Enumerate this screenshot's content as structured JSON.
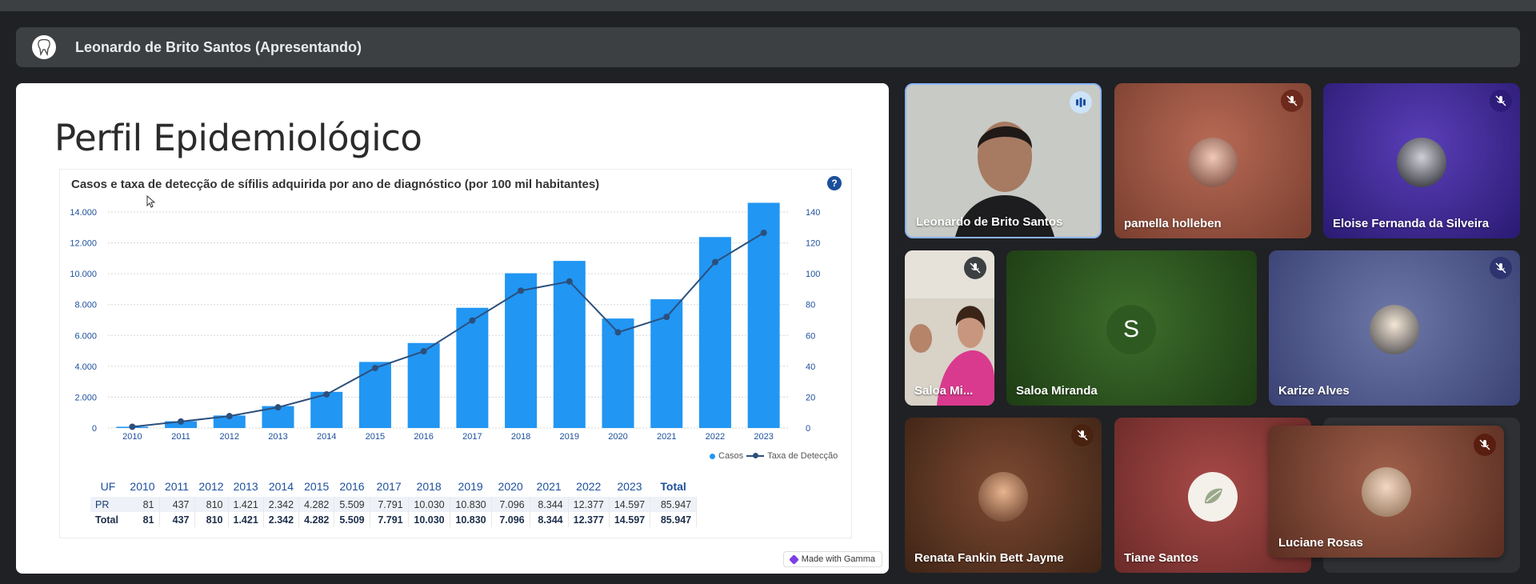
{
  "presenter": {
    "name": "Leonardo de Brito Santos (Apresentando)"
  },
  "slide": {
    "title": "Perfil Epidemiológico",
    "chart_title": "Casos e taxa de detecção de sífilis adquirida por ano de diagnóstico (por 100 mil habitantes)",
    "help_label": "?",
    "legend_cases": "Casos",
    "legend_rate": "Taxa de Detecção",
    "gamma_badge": "Made with Gamma",
    "table": {
      "headers": [
        "UF",
        "2010",
        "2011",
        "2012",
        "2013",
        "2014",
        "2015",
        "2016",
        "2017",
        "2018",
        "2019",
        "2020",
        "2021",
        "2022",
        "2023",
        "Total"
      ],
      "rows": [
        [
          "PR",
          "81",
          "437",
          "810",
          "1.421",
          "2.342",
          "4.282",
          "5.509",
          "7.791",
          "10.030",
          "10.830",
          "7.096",
          "8.344",
          "12.377",
          "14.597",
          "85.947"
        ],
        [
          "Total",
          "81",
          "437",
          "810",
          "1.421",
          "2.342",
          "4.282",
          "5.509",
          "7.791",
          "10.030",
          "10.830",
          "7.096",
          "8.344",
          "12.377",
          "14.597",
          "85.947"
        ]
      ]
    }
  },
  "chart_data": {
    "type": "bar",
    "title": "Casos e taxa de detecção de sífilis adquirida por ano de diagnóstico (por 100 mil habitantes)",
    "categories": [
      "2010",
      "2011",
      "2012",
      "2013",
      "2014",
      "2015",
      "2016",
      "2017",
      "2018",
      "2019",
      "2020",
      "2021",
      "2022",
      "2023"
    ],
    "series": [
      {
        "name": "Casos",
        "type": "bar",
        "axis": "left",
        "values": [
          81,
          437,
          810,
          1421,
          2342,
          4282,
          5509,
          7791,
          10030,
          10830,
          7096,
          8344,
          12377,
          14597
        ]
      },
      {
        "name": "Taxa de Detecção",
        "type": "line",
        "axis": "right",
        "values": [
          0.8,
          4.2,
          7.7,
          13.4,
          21.8,
          38.9,
          49.7,
          69.7,
          89.0,
          95.0,
          62.0,
          72.0,
          107.5,
          126.5
        ]
      }
    ],
    "ylim_left": [
      0,
      14000
    ],
    "yticks_left": [
      "0",
      "2.000",
      "4.000",
      "6.000",
      "8.000",
      "10.000",
      "12.000",
      "14.000"
    ],
    "ylim_right": [
      0,
      140
    ],
    "yticks_right": [
      "0",
      "20",
      "40",
      "60",
      "80",
      "100",
      "120",
      "140"
    ],
    "colors": {
      "bars": "#2196f3",
      "line": "#2c4f7c"
    },
    "grid": true,
    "legend": "bottom-right"
  },
  "participants": [
    {
      "name": "Leonardo de Brito Santos",
      "status": "speaking"
    },
    {
      "name": "pamella holleben",
      "status": "muted"
    },
    {
      "name": "Eloise Fernanda da Silveira",
      "status": "muted"
    },
    {
      "name": "Saloa Mi...",
      "status": "muted"
    },
    {
      "name": "Saloa Miranda",
      "initial": "S",
      "status": "none"
    },
    {
      "name": "Karize Alves",
      "status": "muted"
    },
    {
      "name": "Renata Fankin Bett Jayme",
      "status": "muted"
    },
    {
      "name": "Tiane Santos",
      "status": "none"
    },
    {
      "name": "Luciane Rosas",
      "status": "muted"
    }
  ]
}
